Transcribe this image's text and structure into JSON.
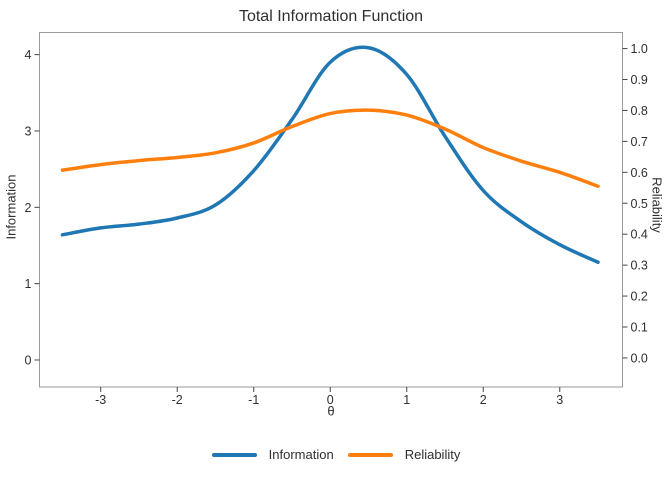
{
  "title": "Total Information Function",
  "chart_data": {
    "type": "line",
    "title": "Total Information Function",
    "xlabel": "θ",
    "ylabel_left": "Information",
    "ylabel_right": "Reliability",
    "x": [
      -3.5,
      -3.0,
      -2.5,
      -2.0,
      -1.5,
      -1.0,
      -0.5,
      0.0,
      0.5,
      1.0,
      1.5,
      2.0,
      2.5,
      3.0,
      3.5
    ],
    "series": [
      {
        "name": "Information",
        "axis": "left",
        "color": "#1f77b4",
        "values": [
          1.64,
          1.73,
          1.78,
          1.86,
          2.03,
          2.48,
          3.15,
          3.9,
          4.09,
          3.74,
          2.93,
          2.22,
          1.81,
          1.51,
          1.28
        ]
      },
      {
        "name": "Reliability",
        "axis": "right",
        "color": "#ff7f0e",
        "values": [
          0.607,
          0.625,
          0.638,
          0.648,
          0.663,
          0.695,
          0.748,
          0.79,
          0.801,
          0.785,
          0.74,
          0.68,
          0.636,
          0.6,
          0.555
        ]
      }
    ],
    "x_ticks": [
      -3,
      -2,
      -1,
      0,
      1,
      2,
      3
    ],
    "y_ticks_left": [
      0,
      1,
      2,
      3,
      4
    ],
    "y_ticks_right": [
      0.0,
      0.1,
      0.2,
      0.3,
      0.4,
      0.5,
      0.6,
      0.7,
      0.8,
      0.9,
      1.0
    ],
    "xlim": [
      -3.8,
      3.82
    ],
    "ylim_left": [
      -0.354,
      4.29
    ],
    "ylim_right": [
      -0.094,
      1.052
    ],
    "grid": false,
    "legend_position": "bottom-center",
    "frame_color": "#9a9a9a",
    "tick_color": "#444444",
    "text_color": "#2f2f2f"
  },
  "legend": {
    "items": [
      {
        "label": "Information",
        "color": "#1f77b4"
      },
      {
        "label": "Reliability",
        "color": "#ff7f0e"
      }
    ]
  }
}
